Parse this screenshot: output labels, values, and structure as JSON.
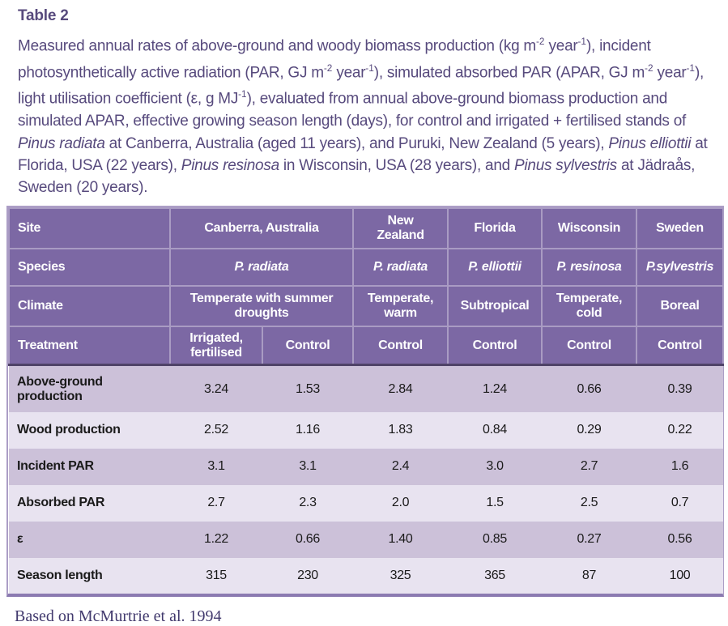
{
  "title": "Table 2",
  "caption_segments": [
    {
      "text": "Measured annual rates of above-ground and woody biomass production (kg m",
      "style": "normal"
    },
    {
      "text": "-2",
      "style": "sup"
    },
    {
      "text": " year",
      "style": "normal"
    },
    {
      "text": "-1",
      "style": "sup"
    },
    {
      "text": "), incident photosynthetically active radiation (PAR, GJ m",
      "style": "normal"
    },
    {
      "text": "-2",
      "style": "sup"
    },
    {
      "text": " year",
      "style": "normal"
    },
    {
      "text": "-1",
      "style": "sup"
    },
    {
      "text": "), simulated absorbed PAR (APAR, GJ m",
      "style": "normal"
    },
    {
      "text": "-2",
      "style": "sup"
    },
    {
      "text": " year",
      "style": "normal"
    },
    {
      "text": "-1",
      "style": "sup"
    },
    {
      "text": "), light utilisation coefficient (ε, g MJ",
      "style": "normal"
    },
    {
      "text": "-1",
      "style": "sup"
    },
    {
      "text": "), evaluated from annual above-ground biomass production and simulated APAR, effective growing season length (days), for control and irrigated + fertilised stands of ",
      "style": "normal"
    },
    {
      "text": "Pinus radiata",
      "style": "italic"
    },
    {
      "text": " at Canberra, Australia (aged 11 years), and Puruki, New Zealand (5 years), ",
      "style": "normal"
    },
    {
      "text": "Pinus elliottii",
      "style": "italic"
    },
    {
      "text": " at Florida, USA (22 years), ",
      "style": "normal"
    },
    {
      "text": "Pinus resinosa",
      "style": "italic"
    },
    {
      "text": " in Wisconsin, USA (28 years), and ",
      "style": "normal"
    },
    {
      "text": "Pinus sylvestris",
      "style": "italic"
    },
    {
      "text": " at Jädraås, Sweden (20 years).",
      "style": "normal"
    }
  ],
  "table": {
    "colors": {
      "header_bg": "#7C68A4",
      "header_grid": "#A99BC3",
      "header_body_separator": "#4F4368",
      "row_dark": "#CCC1D9",
      "row_light": "#E8E3F0",
      "outer_border": "#AC9EC6",
      "bottom_border": "#8B7AB1",
      "caption_text": "#574A7D",
      "footer_text": "#423A6E"
    },
    "header_rows": [
      {
        "label": "Site",
        "cells": [
          {
            "text": "Canberra, Australia",
            "colspan": 2
          },
          {
            "text": "New Zealand"
          },
          {
            "text": "Florida"
          },
          {
            "text": "Wisconsin"
          },
          {
            "text": "Sweden"
          }
        ]
      },
      {
        "label": "Species",
        "cells": [
          {
            "text": "P. radiata",
            "italic": true,
            "colspan": 2
          },
          {
            "text": "P. radiata",
            "italic": true
          },
          {
            "text": "P. elliottii",
            "italic": true
          },
          {
            "text": "P. resinosa",
            "italic": true
          },
          {
            "text": "P.sylvestris",
            "italic": true
          }
        ]
      },
      {
        "label": "Climate",
        "cells": [
          {
            "text": "Temperate with summer droughts",
            "colspan": 2
          },
          {
            "text": "Temperate, warm"
          },
          {
            "text": "Subtropical"
          },
          {
            "text": "Temperate, cold"
          },
          {
            "text": "Boreal"
          }
        ]
      },
      {
        "label": "Treatment",
        "cells": [
          {
            "text": "Irrigated, fertilised"
          },
          {
            "text": "Control"
          },
          {
            "text": "Control"
          },
          {
            "text": "Control"
          },
          {
            "text": "Control"
          },
          {
            "text": "Control"
          }
        ]
      }
    ],
    "data_rows": [
      {
        "label": "Above-ground production",
        "values": [
          "3.24",
          "1.53",
          "2.84",
          "1.24",
          "0.66",
          "0.39"
        ]
      },
      {
        "label": "Wood production",
        "values": [
          "2.52",
          "1.16",
          "1.83",
          "0.84",
          "0.29",
          "0.22"
        ]
      },
      {
        "label": "Incident PAR",
        "values": [
          "3.1",
          "3.1",
          "2.4",
          "3.0",
          "2.7",
          "1.6"
        ]
      },
      {
        "label": "Absorbed PAR",
        "values": [
          "2.7",
          "2.3",
          "2.0",
          "1.5",
          "2.5",
          "0.7"
        ]
      },
      {
        "label": "ε",
        "values": [
          "1.22",
          "0.66",
          "1.40",
          "0.85",
          "0.27",
          "0.56"
        ]
      },
      {
        "label": "Season length",
        "values": [
          "315",
          "230",
          "325",
          "365",
          "87",
          "100"
        ]
      }
    ]
  },
  "footer": "Based on McMurtrie et al. 1994"
}
